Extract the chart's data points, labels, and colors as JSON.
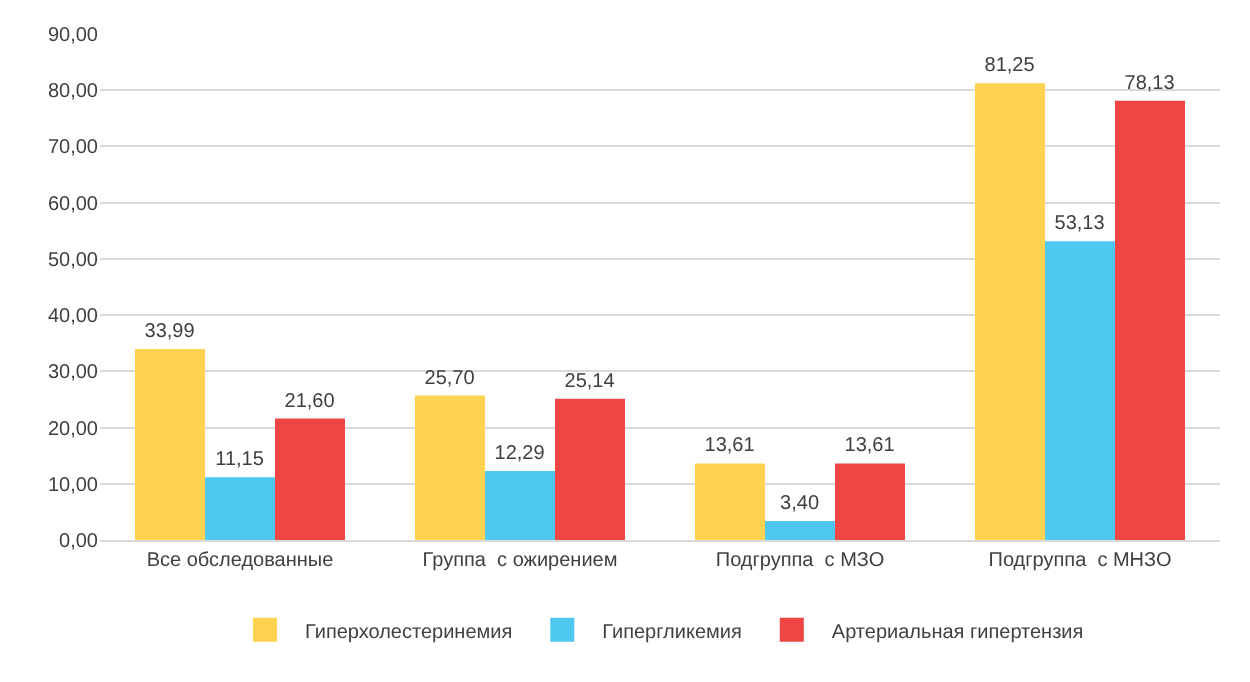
{
  "chart_data": {
    "type": "bar",
    "categories": [
      "Все обследованные",
      "Группа  с ожирением",
      "Подгруппа  с МЗО",
      "Подгруппа  с МНЗО"
    ],
    "series": [
      {
        "name": "Гиперхолестеринемия",
        "color": "#ffd24f",
        "values": [
          33.99,
          25.7,
          13.61,
          81.25
        ],
        "value_labels": [
          "33,99",
          "25,70",
          "13,61",
          "81,25"
        ]
      },
      {
        "name": "Гипергликемия",
        "color": "#4fc8f0",
        "values": [
          11.15,
          12.29,
          3.4,
          53.13
        ],
        "value_labels": [
          "11,15",
          "12,29",
          "3,40",
          "53,13"
        ]
      },
      {
        "name": "Артериальная гипертензия",
        "color": "#ef4545",
        "values": [
          21.6,
          25.14,
          13.61,
          78.13
        ],
        "value_labels": [
          "21,60",
          "25,14",
          "13,61",
          "78,13"
        ]
      }
    ],
    "ylim": [
      0,
      90
    ],
    "yticks": [
      {
        "value": 0,
        "label": "0,00"
      },
      {
        "value": 10,
        "label": "10,00"
      },
      {
        "value": 20,
        "label": "20,00"
      },
      {
        "value": 30,
        "label": "30,00"
      },
      {
        "value": 40,
        "label": "40,00"
      },
      {
        "value": 50,
        "label": "50,00"
      },
      {
        "value": 60,
        "label": "60,00"
      },
      {
        "value": 70,
        "label": "70,00"
      },
      {
        "value": 80,
        "label": "80,00"
      },
      {
        "value": 90,
        "label": "90,00"
      }
    ],
    "grid": "y",
    "legend": "bottom"
  }
}
